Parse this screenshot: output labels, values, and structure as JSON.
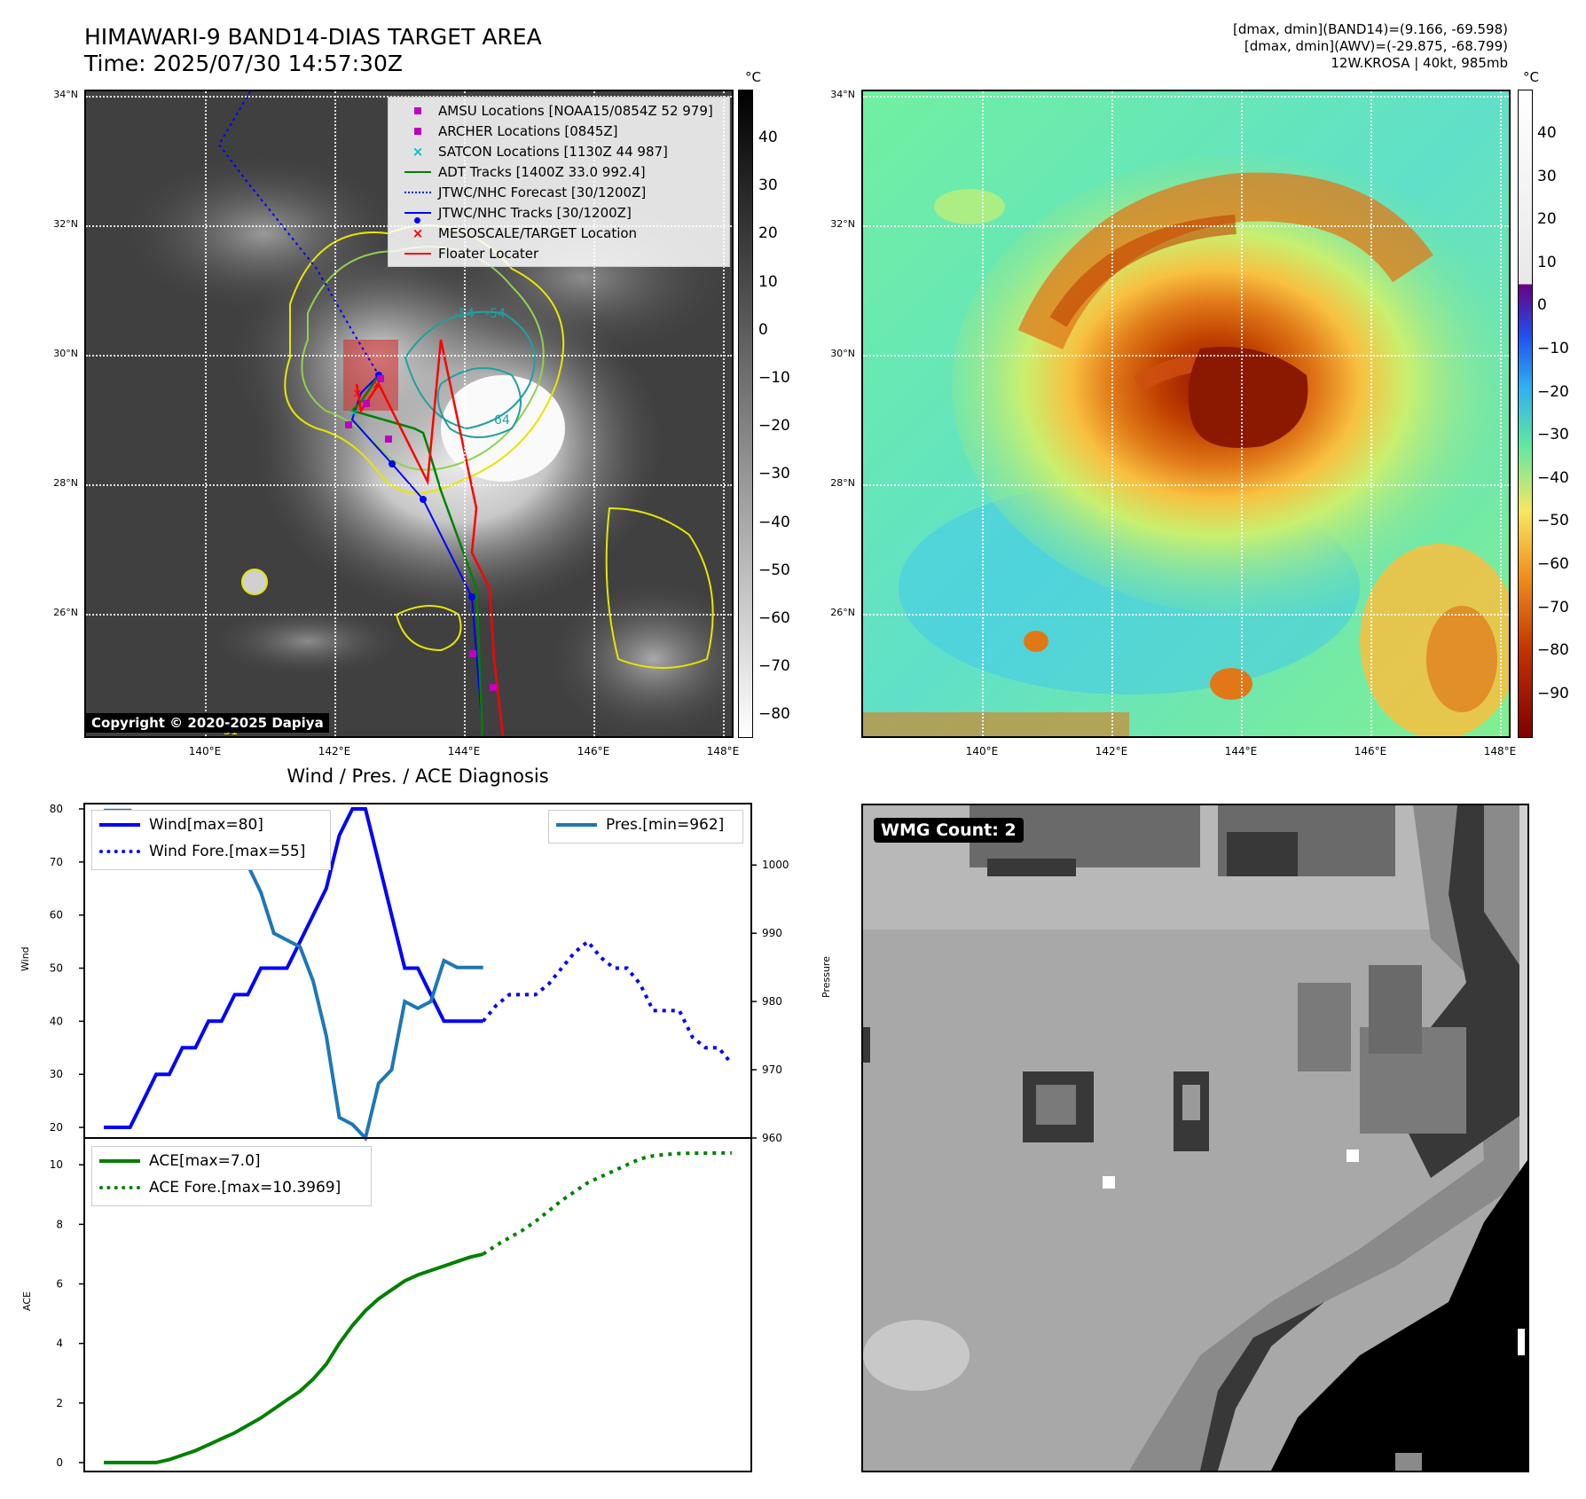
{
  "header": {
    "title_line1": "HIMAWARI-9 BAND14-DIAS TARGET AREA",
    "title_line2": "Time: 2025/07/30 14:57:30Z",
    "info_line1": "[dmax, dmin](BAND14)=(9.166, -69.598)",
    "info_line2": "[dmax, dmin](AWV)=(-29.875, -68.799)",
    "info_line3": "12W.KROSA | 40kt, 985mb"
  },
  "map": {
    "lat_labels": [
      "34°N",
      "32°N",
      "30°N",
      "28°N",
      "26°N"
    ],
    "lon_labels": [
      "140°E",
      "142°E",
      "144°E",
      "146°E",
      "148°E"
    ],
    "contour_labels": [
      "-54",
      "-54",
      "-64",
      "-31"
    ],
    "copyright": "Copyright © 2020-2025 Dapiya",
    "legend": [
      {
        "label": "AMSU Locations [NOAA15/0854Z 52 979]",
        "color": "#c000c0",
        "symbol": "square"
      },
      {
        "label": "ARCHER Locations [0845Z]",
        "color": "#c000c0",
        "symbol": "square"
      },
      {
        "label": "SATCON Locations [1130Z 44 987]",
        "color": "#00c0c0",
        "symbol": "x"
      },
      {
        "label": "ADT Tracks [1400Z 33.0 992.4]",
        "color": "#008000",
        "symbol": "line"
      },
      {
        "label": "JTWC/NHC Forecast [30/1200Z]",
        "color": "#0000ff",
        "symbol": "dotted"
      },
      {
        "label": "JTWC/NHC Tracks [30/1200Z]",
        "color": "#0000ff",
        "symbol": "line-dot"
      },
      {
        "label": "MESOSCALE/TARGET Location",
        "color": "#ff0000",
        "symbol": "x"
      },
      {
        "label": "Floater Locater",
        "color": "#ff0000",
        "symbol": "line"
      }
    ],
    "colorbar_unit": "°C",
    "gray_colorbar_ticks": [
      "40",
      "30",
      "20",
      "10",
      "0",
      "−10",
      "−20",
      "−30",
      "−40",
      "−50",
      "−60",
      "−70",
      "−80"
    ],
    "color_colorbar_ticks": [
      "40",
      "30",
      "20",
      "10",
      "0",
      "−10",
      "−20",
      "−30",
      "−40",
      "−50",
      "−60",
      "−70",
      "−80",
      "−90"
    ]
  },
  "wmg": {
    "label": "WMG Count: 2"
  },
  "diagnosis_title": "Wind / Pres. / ACE Diagnosis",
  "chart_data": [
    {
      "type": "line",
      "title": "Wind / Pres. / ACE Diagnosis",
      "ylabel": "Wind",
      "y2label": "Pressure",
      "ylim": [
        18,
        81
      ],
      "y2lim": [
        960,
        1009
      ],
      "yticks": [
        20,
        30,
        40,
        50,
        60,
        70,
        80
      ],
      "y2ticks": [
        960,
        970,
        980,
        990,
        1000
      ],
      "series": [
        {
          "name": "Wind[max=80]",
          "color": "#0000ff",
          "style": "solid",
          "x": [
            0,
            1,
            2,
            3,
            4,
            5,
            6,
            7,
            8,
            9,
            10,
            11,
            12,
            13,
            14,
            15,
            16,
            17,
            18,
            19,
            20,
            21,
            22,
            23,
            24,
            25,
            26,
            27,
            28,
            29
          ],
          "values": [
            20,
            20,
            20,
            25,
            30,
            30,
            35,
            35,
            40,
            40,
            45,
            45,
            50,
            50,
            50,
            55,
            60,
            65,
            75,
            80,
            80,
            70,
            60,
            50,
            50,
            45,
            40,
            40,
            40,
            40
          ]
        },
        {
          "name": "Wind Fore.[max=55]",
          "color": "#0000ff",
          "style": "dotted",
          "x": [
            29,
            30,
            31,
            32,
            33,
            34,
            35,
            36,
            37,
            38,
            39,
            40,
            41,
            42,
            43,
            44,
            45,
            46,
            47,
            48
          ],
          "values": [
            40,
            43,
            45,
            45,
            45,
            47,
            50,
            53,
            55,
            52,
            50,
            50,
            47,
            42,
            42,
            42,
            37,
            35,
            35,
            32
          ]
        },
        {
          "name": "Pres.[min=962]",
          "color": "#1f77b4",
          "style": "solid",
          "x": [
            0,
            1,
            2,
            3,
            4,
            5,
            6,
            7,
            8,
            9,
            10,
            11,
            12,
            13,
            14,
            15,
            16,
            17,
            18,
            19,
            20,
            21,
            22,
            23,
            24,
            25,
            26,
            27,
            28,
            29
          ],
          "values": [
            1008,
            1008,
            1008,
            1005,
            1005,
            1004,
            1004,
            1002,
            1002,
            1000,
            1000,
            1000,
            996,
            990,
            989,
            988,
            983,
            975,
            963,
            962,
            960,
            968,
            970,
            980,
            979,
            980,
            986,
            985,
            985,
            985
          ]
        }
      ]
    },
    {
      "type": "line",
      "ylabel": "ACE",
      "ylim": [
        -0.3,
        10.9
      ],
      "yticks": [
        0,
        2,
        4,
        6,
        8,
        10
      ],
      "series": [
        {
          "name": "ACE[max=7.0]",
          "color": "#008000",
          "style": "solid",
          "x": [
            0,
            1,
            2,
            3,
            4,
            5,
            6,
            7,
            8,
            9,
            10,
            11,
            12,
            13,
            14,
            15,
            16,
            17,
            18,
            19,
            20,
            21,
            22,
            23,
            24,
            25,
            26,
            27,
            28,
            29
          ],
          "values": [
            0,
            0,
            0,
            0,
            0,
            0.1,
            0.25,
            0.4,
            0.6,
            0.8,
            1.0,
            1.25,
            1.5,
            1.8,
            2.1,
            2.4,
            2.8,
            3.3,
            4.0,
            4.6,
            5.1,
            5.5,
            5.8,
            6.1,
            6.3,
            6.45,
            6.6,
            6.75,
            6.9,
            7.0
          ]
        },
        {
          "name": "ACE Fore.[max=10.3969]",
          "color": "#008000",
          "style": "dotted",
          "x": [
            29,
            30,
            31,
            32,
            33,
            34,
            35,
            36,
            37,
            38,
            39,
            40,
            41,
            42,
            43,
            44,
            45,
            46,
            47,
            48
          ],
          "values": [
            7.0,
            7.3,
            7.55,
            7.8,
            8.1,
            8.45,
            8.8,
            9.1,
            9.4,
            9.6,
            9.8,
            10.0,
            10.2,
            10.3,
            10.35,
            10.38,
            10.39,
            10.39,
            10.397,
            10.397
          ]
        }
      ]
    }
  ]
}
